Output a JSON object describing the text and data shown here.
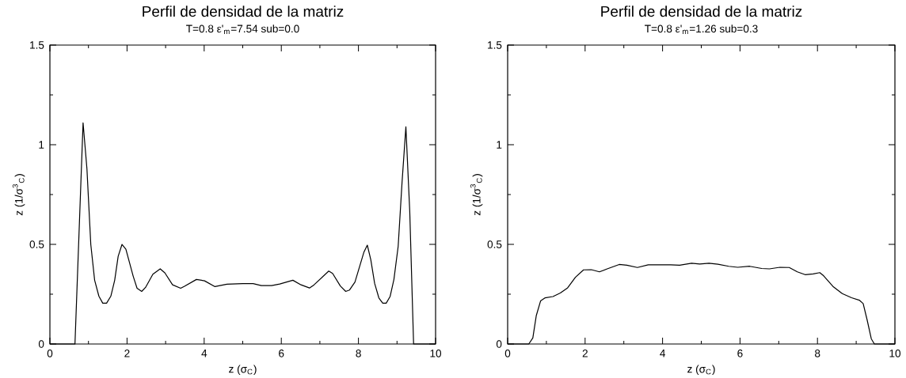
{
  "chart_data": [
    {
      "type": "line",
      "title": "Perfil de densidad de la matriz",
      "subtitle": "T=0.8   ε'$_{m}$=7.54   sub=0.0",
      "xlabel": "z (σ$_{C}$)",
      "ylabel": "z (1/σ$^{3}$$_{C}$)",
      "xlim": [
        0,
        10
      ],
      "ylim": [
        0,
        1.5
      ],
      "xticks": [
        0,
        2,
        4,
        6,
        8,
        10
      ],
      "yticks": [
        0,
        0.5,
        1,
        1.5
      ],
      "series": [
        {
          "color": "#000000",
          "x": [
            0,
            0.65,
            0.86,
            0.96,
            1.06,
            1.16,
            1.27,
            1.37,
            1.47,
            1.58,
            1.68,
            1.77,
            1.87,
            1.97,
            2.16,
            2.26,
            2.38,
            2.48,
            2.67,
            2.86,
            2.98,
            3.18,
            3.39,
            3.49,
            3.8,
            4.01,
            4.28,
            4.59,
            5.0,
            5.27,
            5.48,
            5.75,
            5.96,
            6.3,
            6.51,
            6.73,
            6.85,
            7.23,
            7.33,
            7.53,
            7.67,
            7.77,
            7.91,
            8.14,
            8.23,
            8.32,
            8.42,
            8.53,
            8.63,
            8.72,
            8.82,
            8.92,
            9.03,
            9.13,
            9.23,
            9.33,
            9.43,
            10
          ],
          "values": [
            0,
            0,
            1.11,
            0.88,
            0.5,
            0.32,
            0.24,
            0.205,
            0.205,
            0.24,
            0.32,
            0.44,
            0.5,
            0.476,
            0.34,
            0.28,
            0.264,
            0.284,
            0.35,
            0.377,
            0.357,
            0.297,
            0.28,
            0.29,
            0.324,
            0.317,
            0.288,
            0.3,
            0.303,
            0.303,
            0.293,
            0.293,
            0.301,
            0.32,
            0.297,
            0.281,
            0.297,
            0.366,
            0.354,
            0.291,
            0.264,
            0.271,
            0.311,
            0.46,
            0.496,
            0.423,
            0.304,
            0.231,
            0.205,
            0.205,
            0.238,
            0.324,
            0.49,
            0.81,
            1.09,
            0.667,
            0,
            0
          ]
        }
      ]
    },
    {
      "type": "line",
      "title": "Perfil de densidad de la matriz",
      "subtitle": "T=0.8   ε'$_{m}$=1.26   sub=0.3",
      "xlabel": "z (σ$_{C}$)",
      "ylabel": "z (1/σ$^{3}$$_{C}$)",
      "xlim": [
        0,
        10
      ],
      "ylim": [
        0,
        1.5
      ],
      "xticks": [
        0,
        2,
        4,
        6,
        8,
        10
      ],
      "yticks": [
        0,
        0.5,
        1,
        1.5
      ],
      "series": [
        {
          "color": "#000000",
          "x": [
            0,
            0.545,
            0.65,
            0.74,
            0.85,
            0.97,
            1.17,
            1.36,
            1.55,
            1.75,
            1.96,
            2.16,
            2.37,
            2.57,
            2.88,
            3.08,
            3.35,
            3.63,
            4.21,
            4.44,
            4.75,
            4.96,
            5.2,
            5.43,
            5.71,
            5.94,
            6.25,
            6.56,
            6.76,
            7.03,
            7.27,
            7.48,
            7.68,
            7.89,
            8.06,
            8.16,
            8.4,
            8.64,
            8.88,
            9.08,
            9.18,
            9.28,
            9.39,
            9.47,
            10
          ],
          "values": [
            0,
            0,
            0.03,
            0.143,
            0.216,
            0.232,
            0.238,
            0.256,
            0.282,
            0.335,
            0.372,
            0.373,
            0.362,
            0.377,
            0.399,
            0.395,
            0.384,
            0.397,
            0.397,
            0.395,
            0.405,
            0.401,
            0.405,
            0.4,
            0.39,
            0.385,
            0.39,
            0.379,
            0.377,
            0.385,
            0.384,
            0.362,
            0.348,
            0.352,
            0.358,
            0.342,
            0.289,
            0.253,
            0.232,
            0.22,
            0.203,
            0.123,
            0.026,
            0,
            0
          ]
        }
      ]
    }
  ]
}
